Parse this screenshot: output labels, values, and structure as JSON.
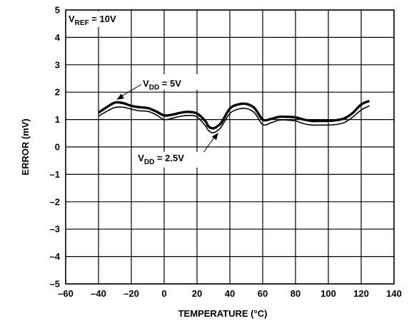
{
  "chart_data": {
    "type": "line",
    "xlabel": "TEMPERATURE (°C)",
    "ylabel": "ERROR (mV)",
    "xlim": [
      -60,
      140
    ],
    "ylim": [
      -5,
      5
    ],
    "x_ticks": [
      "–60",
      "–40",
      "–20",
      "0",
      "20",
      "40",
      "60",
      "80",
      "100",
      "120",
      "140"
    ],
    "y_ticks": [
      "5",
      "4",
      "3",
      "2",
      "1",
      "0",
      "–1",
      "–2",
      "–3",
      "–4",
      "–5"
    ],
    "grid": true,
    "annotations": {
      "vref": {
        "pre": "V",
        "sub": "REF",
        "post": " = 10V"
      },
      "vdd5": {
        "pre": "V",
        "sub": "DD",
        "post": " = 5V"
      },
      "vdd25": {
        "pre": "V",
        "sub": "DD",
        "post": " = 2.5V"
      }
    },
    "series": [
      {
        "name": "VDD = 5V",
        "color": "#000000",
        "x": [
          -40,
          -35,
          -30,
          -25,
          -20,
          -15,
          -10,
          -5,
          0,
          5,
          10,
          15,
          20,
          25,
          27,
          30,
          33,
          35,
          40,
          45,
          50,
          55,
          60,
          65,
          70,
          75,
          80,
          85,
          90,
          95,
          100,
          105,
          110,
          115,
          120,
          125
        ],
        "y": [
          1.25,
          1.45,
          1.62,
          1.6,
          1.5,
          1.45,
          1.42,
          1.3,
          1.15,
          1.18,
          1.25,
          1.28,
          1.22,
          0.95,
          0.75,
          0.68,
          0.78,
          0.9,
          1.4,
          1.55,
          1.57,
          1.42,
          1.0,
          1.02,
          1.1,
          1.1,
          1.08,
          1.0,
          0.95,
          0.95,
          0.95,
          0.98,
          1.05,
          1.25,
          1.55,
          1.68
        ]
      },
      {
        "name": "VDD = 2.5V",
        "color": "#000000",
        "x": [
          -40,
          -35,
          -30,
          -25,
          -20,
          -15,
          -10,
          -5,
          0,
          5,
          10,
          15,
          20,
          25,
          27,
          30,
          33,
          35,
          40,
          45,
          50,
          55,
          60,
          65,
          70,
          75,
          80,
          85,
          90,
          95,
          100,
          105,
          110,
          115,
          120,
          125
        ],
        "y": [
          1.12,
          1.3,
          1.44,
          1.45,
          1.38,
          1.32,
          1.3,
          1.18,
          1.0,
          1.05,
          1.12,
          1.15,
          1.1,
          0.78,
          0.6,
          0.52,
          0.62,
          0.75,
          1.22,
          1.38,
          1.4,
          1.25,
          0.82,
          0.88,
          0.98,
          0.98,
          0.95,
          0.85,
          0.8,
          0.8,
          0.8,
          0.82,
          0.9,
          1.1,
          1.35,
          1.5
        ]
      }
    ]
  }
}
